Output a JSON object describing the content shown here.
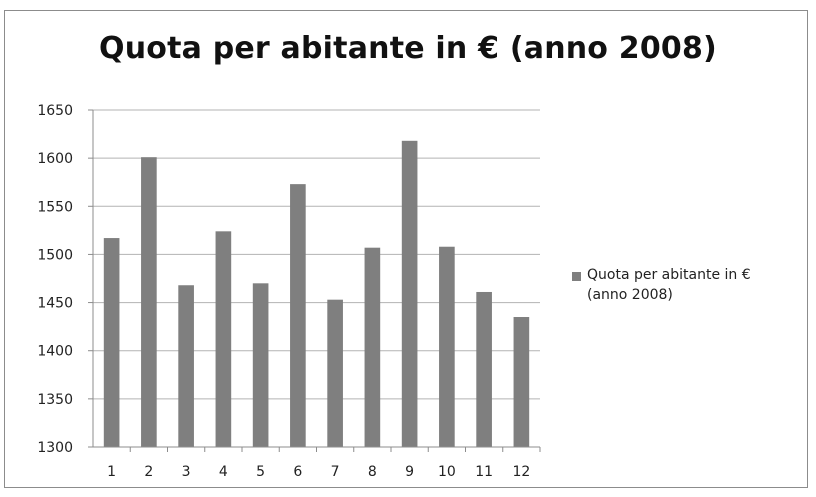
{
  "chart_data": {
    "type": "bar",
    "title": "Quota per abitante in € (anno 2008)",
    "xlabel": "",
    "ylabel": "",
    "categories": [
      "1",
      "2",
      "3",
      "4",
      "5",
      "6",
      "7",
      "8",
      "9",
      "10",
      "11",
      "12"
    ],
    "series": [
      {
        "name": "Quota per abitante in € (anno 2008)",
        "values": [
          1517,
          1601,
          1468,
          1524,
          1470,
          1573,
          1453,
          1507,
          1618,
          1508,
          1461,
          1435
        ],
        "color": "#7f7f7f"
      }
    ],
    "ylim": [
      1300,
      1650
    ],
    "yticks": [
      "1300",
      "1350",
      "1400",
      "1450",
      "1500",
      "1550",
      "1600",
      "1650"
    ],
    "grid": true,
    "legend_position": "right"
  },
  "legend": {
    "label": "Quota per abitante in €\n(anno 2008)"
  },
  "colors": {
    "bar": "#7f7f7f",
    "grid": "#b3b3b3",
    "axis": "#8c8c8c",
    "text": "#222222"
  }
}
